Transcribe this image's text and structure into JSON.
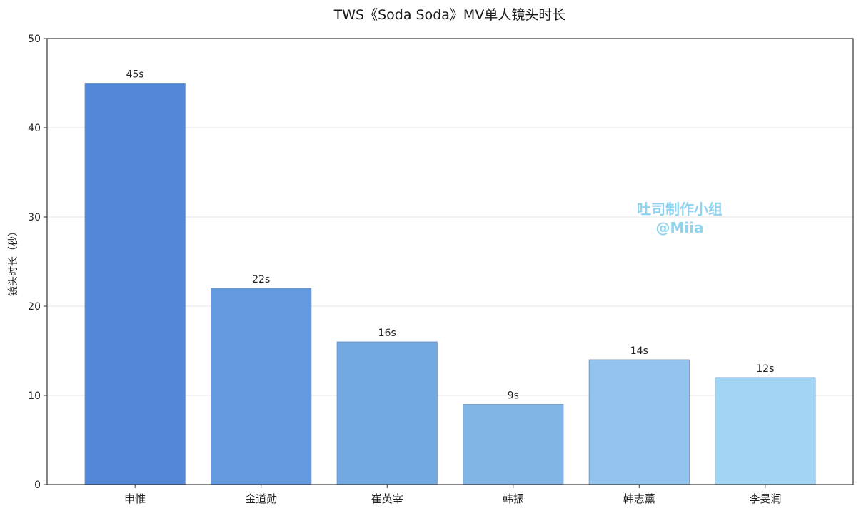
{
  "chart_data": {
    "type": "bar",
    "title": "TWS《Soda Soda》MV单人镜头时长",
    "xlabel": "",
    "ylabel": "镜头时长（秒）",
    "ylim": [
      0,
      50
    ],
    "yticks": [
      0,
      10,
      20,
      30,
      40,
      50
    ],
    "grid": "horizontal",
    "categories": [
      "申惟",
      "金道勋",
      "崔英宰",
      "韩振",
      "韩志薰",
      "李旻润"
    ],
    "values": [
      45,
      22,
      16,
      9,
      14,
      12
    ],
    "data_labels": [
      "45s",
      "22s",
      "16s",
      "9s",
      "14s",
      "12s"
    ],
    "bar_colors": [
      "#5388d8",
      "#6399df",
      "#72a9e3",
      "#80b5e6",
      "#92c4ef",
      "#a2d4f3"
    ]
  },
  "watermark": {
    "line1": "吐司制作小组",
    "line2": "@Miia",
    "color": "#8fd3ee"
  }
}
